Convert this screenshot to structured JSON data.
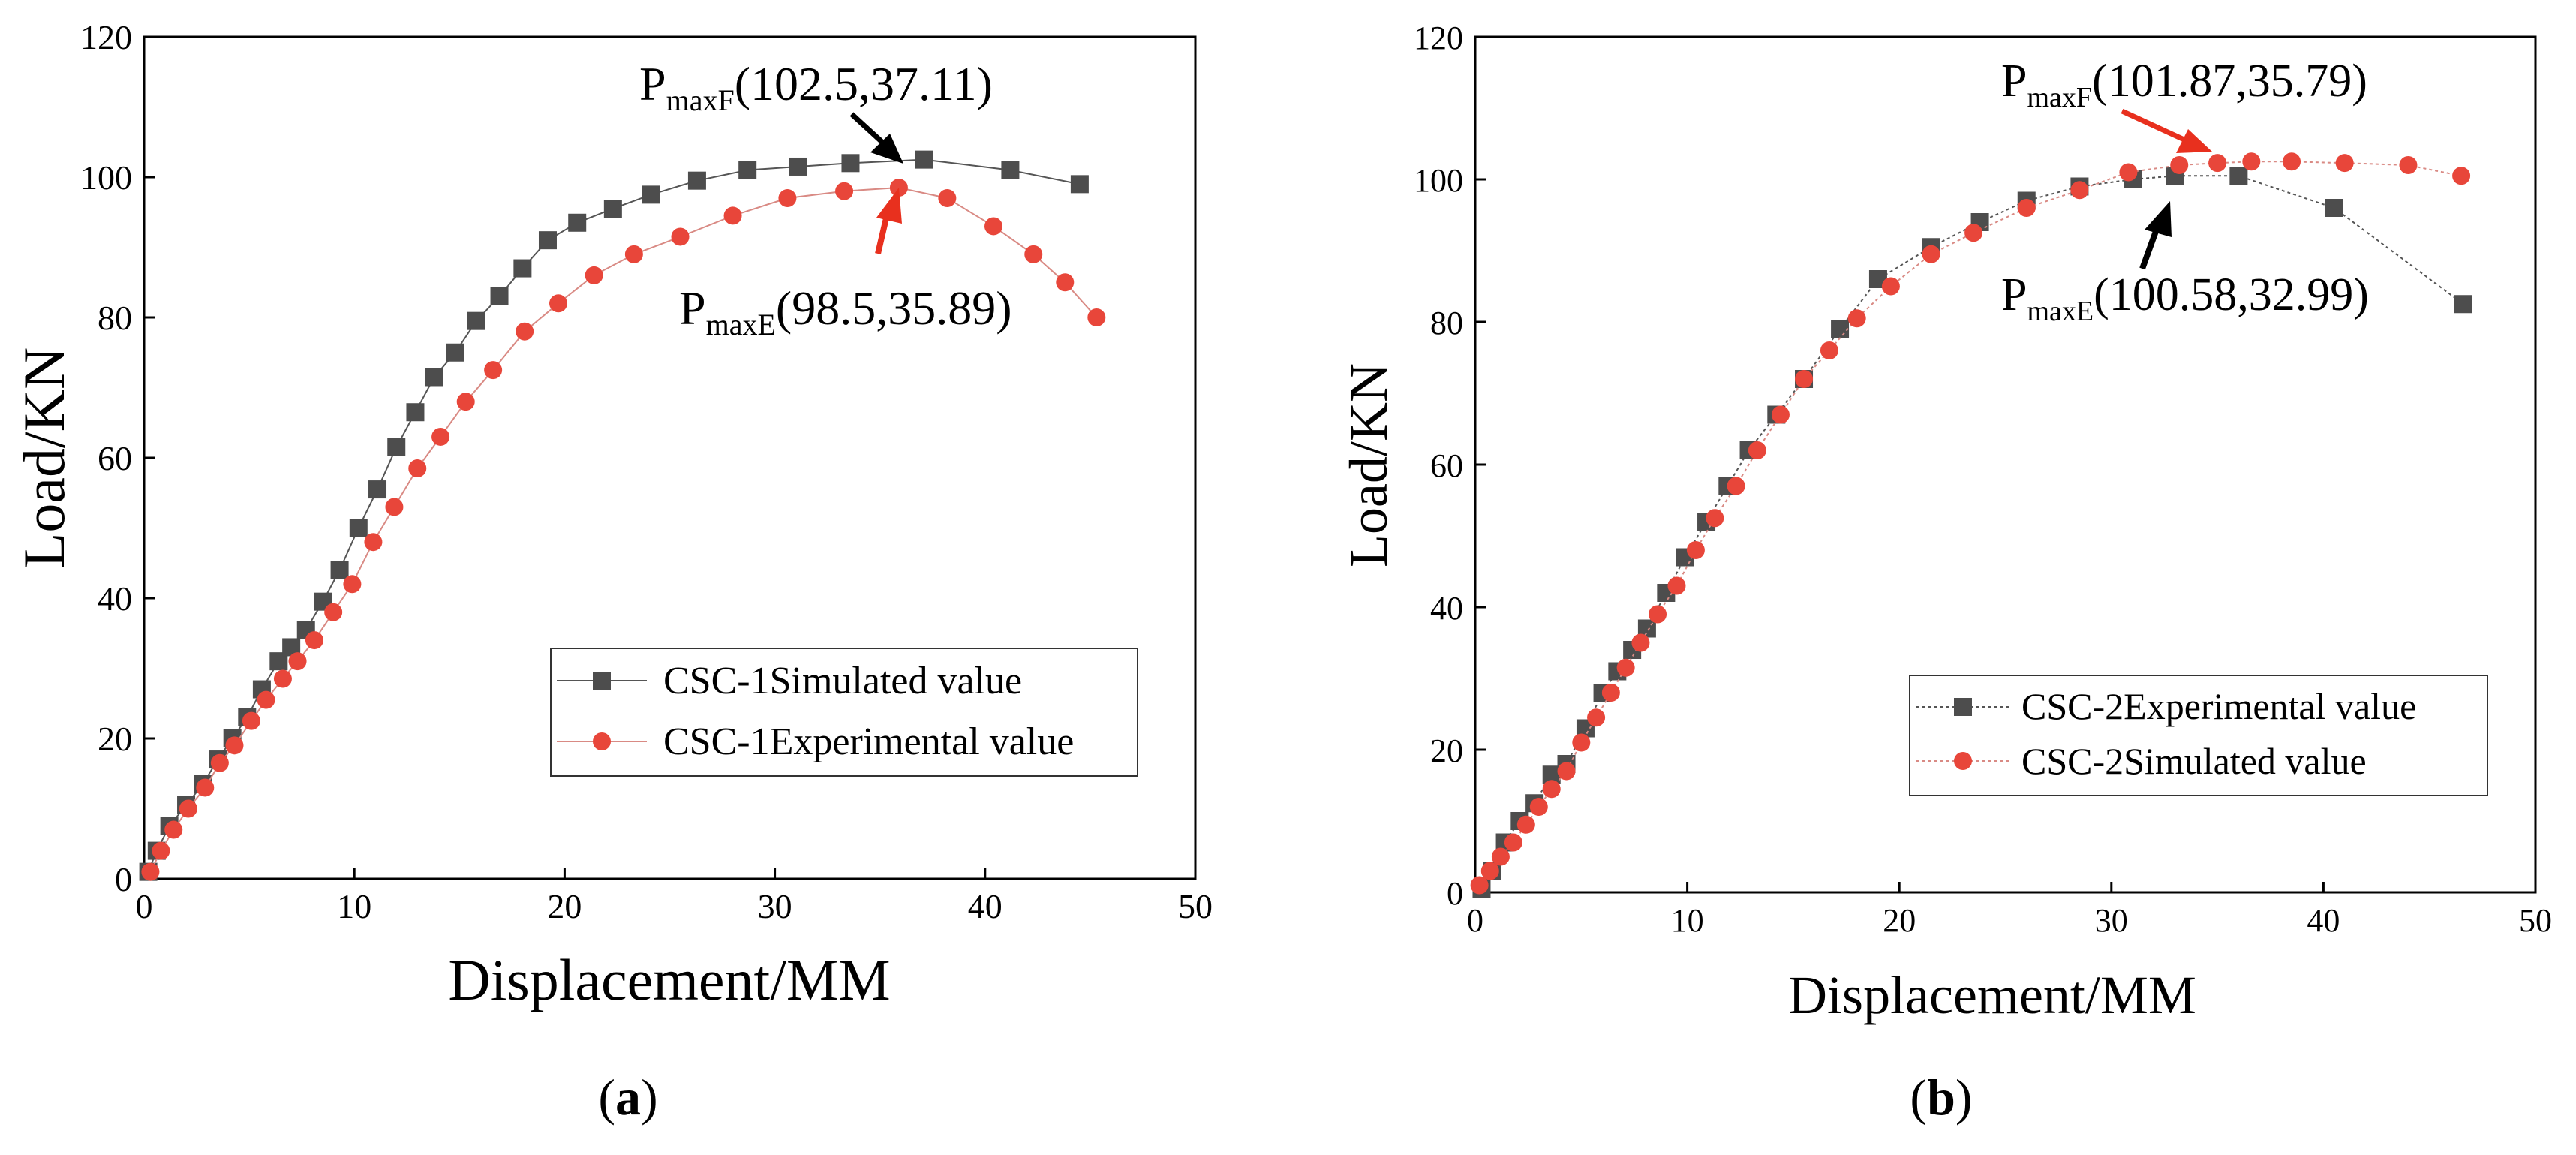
{
  "chart_data": [
    {
      "type": "line",
      "panel_label": "(a)",
      "xlabel": "Displacement/MM",
      "ylabel": "Load/KN",
      "xlim": [
        0,
        50
      ],
      "ylim": [
        0,
        120
      ],
      "xticks": [
        "0",
        "10",
        "20",
        "30",
        "40",
        "50"
      ],
      "yticks": [
        "0",
        "20",
        "40",
        "60",
        "80",
        "100",
        "120"
      ],
      "legend_position": "lower-right",
      "series": [
        {
          "name": "CSC-1Simulated value",
          "marker": "square",
          "color": "#4d4d4d",
          "line_color": "#555555",
          "x": [
            0.2,
            0.6,
            1.2,
            2.0,
            2.8,
            3.5,
            4.2,
            4.9,
            5.6,
            6.4,
            7.0,
            7.7,
            8.5,
            9.3,
            10.2,
            11.1,
            12.0,
            12.9,
            13.8,
            14.8,
            15.8,
            16.9,
            18.0,
            19.2,
            20.6,
            22.3,
            24.1,
            26.3,
            28.7,
            31.1,
            33.6,
            37.1,
            41.2,
            44.5
          ],
          "y": [
            1.0,
            4.0,
            7.5,
            10.5,
            13.5,
            17.0,
            20.0,
            23.0,
            27.0,
            31.0,
            33.0,
            35.5,
            39.5,
            44.0,
            50.0,
            55.5,
            61.5,
            66.5,
            71.5,
            75.0,
            79.5,
            83.0,
            87.0,
            91.0,
            93.5,
            95.5,
            97.5,
            99.5,
            101.0,
            101.5,
            102.0,
            102.5,
            101.0,
            99.0
          ]
        },
        {
          "name": "CSC-1Experimental value",
          "marker": "circle",
          "color": "#e8463a",
          "line_color": "#d98a84",
          "x": [
            0.3,
            0.8,
            1.4,
            2.1,
            2.9,
            3.6,
            4.3,
            5.1,
            5.8,
            6.6,
            7.3,
            8.1,
            9.0,
            9.9,
            10.9,
            11.9,
            13.0,
            14.1,
            15.3,
            16.6,
            18.1,
            19.7,
            21.4,
            23.3,
            25.5,
            28.0,
            30.6,
            33.3,
            35.9,
            38.2,
            40.4,
            42.3,
            43.8,
            45.3
          ],
          "y": [
            1.0,
            4.0,
            7.0,
            10.0,
            13.0,
            16.5,
            19.0,
            22.5,
            25.5,
            28.5,
            31.0,
            34.0,
            38.0,
            42.0,
            48.0,
            53.0,
            58.5,
            63.0,
            68.0,
            72.5,
            78.0,
            82.0,
            86.0,
            89.0,
            91.5,
            94.5,
            97.0,
            98.0,
            98.5,
            97.0,
            93.0,
            89.0,
            85.0,
            80.0
          ]
        }
      ],
      "annotations": [
        {
          "text_main": "P",
          "text_sub": "maxF",
          "text_rest": "(102.5,37.11)",
          "arrow_color": "#000000"
        },
        {
          "text_main": "P",
          "text_sub": "maxE",
          "text_rest": "(98.5,35.89)",
          "arrow_color": "#e8301e"
        }
      ]
    },
    {
      "type": "line",
      "panel_label": "(b)",
      "xlabel": "Displacement/MM",
      "ylabel": "Load/KN",
      "xlim": [
        0,
        50
      ],
      "ylim": [
        0,
        120
      ],
      "xticks": [
        "0",
        "10",
        "20",
        "30",
        "40",
        "50"
      ],
      "yticks": [
        "0",
        "20",
        "40",
        "60",
        "80",
        "100",
        "120"
      ],
      "legend_position": "lower-right",
      "series": [
        {
          "name": "CSC-2Experimental value",
          "marker": "square",
          "color": "#4d4d4d",
          "line_color": "#555555",
          "x": [
            0.3,
            0.8,
            1.4,
            2.1,
            2.8,
            3.6,
            4.3,
            5.2,
            6.0,
            6.7,
            7.4,
            8.1,
            9.0,
            9.9,
            10.9,
            11.9,
            12.9,
            14.2,
            15.5,
            17.2,
            19.0,
            21.5,
            23.8,
            26.0,
            28.5,
            31.0,
            33.0,
            36.0,
            40.5,
            46.6
          ],
          "y": [
            0.5,
            3.0,
            7.0,
            10.0,
            12.5,
            16.5,
            18.0,
            23.0,
            28.0,
            31.0,
            34.0,
            37.0,
            42.0,
            47.0,
            52.0,
            57.0,
            62.0,
            67.0,
            72.0,
            79.0,
            86.0,
            90.5,
            94.0,
            97.0,
            99.0,
            100.0,
            100.5,
            100.5,
            96.0,
            82.5
          ]
        },
        {
          "name": "CSC-2Simulated value",
          "marker": "circle",
          "color": "#e8463a",
          "line_color": "#d98a84",
          "x": [
            0.2,
            0.7,
            1.2,
            1.8,
            2.4,
            3.0,
            3.6,
            4.3,
            5.0,
            5.7,
            6.4,
            7.1,
            7.8,
            8.6,
            9.5,
            10.4,
            11.3,
            12.3,
            13.3,
            14.4,
            15.5,
            16.7,
            18.0,
            19.6,
            21.5,
            23.5,
            26.0,
            28.5,
            30.8,
            33.2,
            35.0,
            36.6,
            38.5,
            41.0,
            44.0,
            46.5
          ],
          "y": [
            1.0,
            3.0,
            5.0,
            7.0,
            9.5,
            12.0,
            14.5,
            17.0,
            21.0,
            24.5,
            28.0,
            31.5,
            35.0,
            39.0,
            43.0,
            48.0,
            52.5,
            57.0,
            62.0,
            67.0,
            72.0,
            76.0,
            80.5,
            85.0,
            89.5,
            92.5,
            96.0,
            98.5,
            101.0,
            102.0,
            102.3,
            102.5,
            102.5,
            102.3,
            102.0,
            100.5
          ]
        }
      ],
      "annotations": [
        {
          "text_main": "P",
          "text_sub": "maxF",
          "text_rest": "(101.87,35.79)",
          "arrow_color": "#e8301e"
        },
        {
          "text_main": "P",
          "text_sub": "maxE",
          "text_rest": "(100.58,32.99)",
          "arrow_color": "#000000"
        }
      ]
    }
  ]
}
